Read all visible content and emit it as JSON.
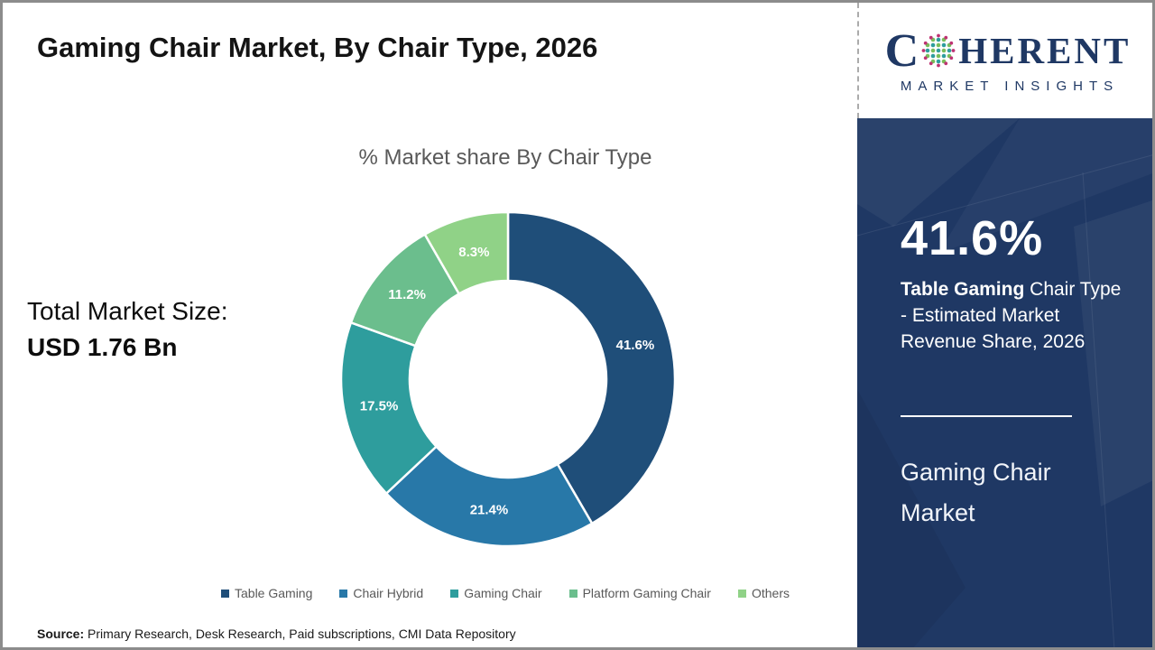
{
  "title": "Gaming Chair Market, By Chair Type, 2026",
  "logo": {
    "word_start": "C",
    "word_end": "HERENT",
    "subtitle": "MARKET INSIGHTS",
    "navy": "#1F3864",
    "globe_dot_colors": {
      "teal": "#2E9D9D",
      "green": "#79BE5B",
      "magenta": "#BE3272"
    }
  },
  "stats": {
    "total_label": "Total Market Size:",
    "total_value": "USD 1.76 Bn"
  },
  "chart_data": {
    "type": "pie",
    "variant": "donut",
    "title": "% Market share By Chair Type",
    "categories": [
      "Table Gaming",
      "Chair Hybrid",
      "Gaming Chair",
      "Platform Gaming Chair",
      "Others"
    ],
    "values": [
      41.6,
      21.4,
      17.5,
      11.2,
      8.3
    ],
    "data_labels": [
      "41.6%",
      "21.4%",
      "17.5%",
      "11.2%",
      "8.3%"
    ],
    "colors": [
      "#1F4E79",
      "#2878A8",
      "#2E9D9D",
      "#6BBE8D",
      "#90D287"
    ],
    "start_angle_deg": 0,
    "direction": "clockwise",
    "legend_position": "bottom",
    "label_color": "#ffffff"
  },
  "side_panel": {
    "headline_value": "41.6%",
    "description_bold": "Table Gaming",
    "description_rest": " Chair Type - Estimated Market Revenue Share, 2026",
    "report_name_line1": "Gaming Chair",
    "report_name_line2": "Market",
    "background_color": "#1F3864"
  },
  "source": {
    "label": "Source:",
    "text": " Primary Research, Desk Research, Paid subscriptions, CMI Data Repository"
  }
}
